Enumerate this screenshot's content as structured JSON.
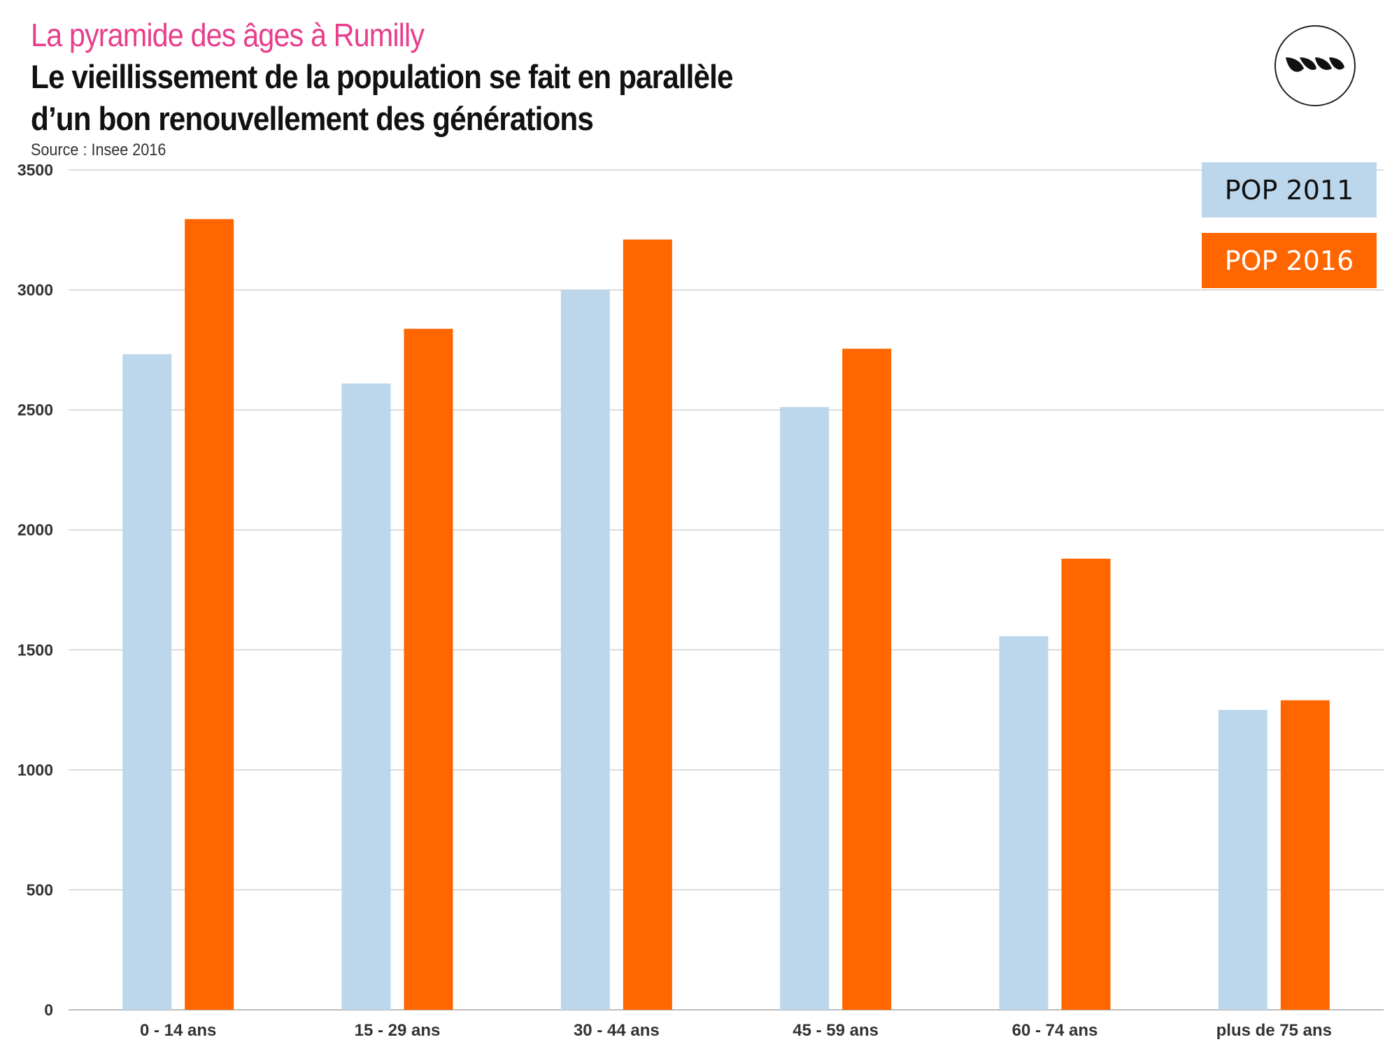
{
  "header": {
    "kicker": "La pyramide des âges à Rumilly",
    "headline_line1": "Le vieillissement de la population se fait en parallèle",
    "headline_line2": "d’un bon renouvellement des générations",
    "source": "Source : Insee 2016"
  },
  "colors": {
    "kicker": "#e83e8c",
    "pop2011": "#bcd7ec",
    "pop2016": "#ff6600",
    "grid": "#d0d0d0",
    "axis_text": "#333333"
  },
  "logo": {
    "icon": "leaves-logo-icon"
  },
  "legend": {
    "items": [
      {
        "label": "POP 2011",
        "color": "#bcd7ec",
        "text_color": "#111111"
      },
      {
        "label": "POP 2016",
        "color": "#ff6600",
        "text_color": "#ffffff"
      }
    ],
    "placement": "top-right"
  },
  "chart_data": {
    "type": "bar",
    "categories": [
      "0 - 14 ans",
      "15 - 29 ans",
      "30 - 44 ans",
      "45 - 59 ans",
      "60 - 74 ans",
      "plus de 75 ans"
    ],
    "series": [
      {
        "name": "POP 2011",
        "values": [
          2732,
          2610,
          3000,
          2512,
          1557,
          1250
        ]
      },
      {
        "name": "POP 2016",
        "values": [
          3295,
          2838,
          3210,
          2755,
          1880,
          1290
        ]
      }
    ],
    "yticks": [
      0,
      500,
      1000,
      1500,
      2000,
      2500,
      3000,
      3500
    ],
    "ylim": [
      0,
      3500
    ],
    "grid": true
  }
}
